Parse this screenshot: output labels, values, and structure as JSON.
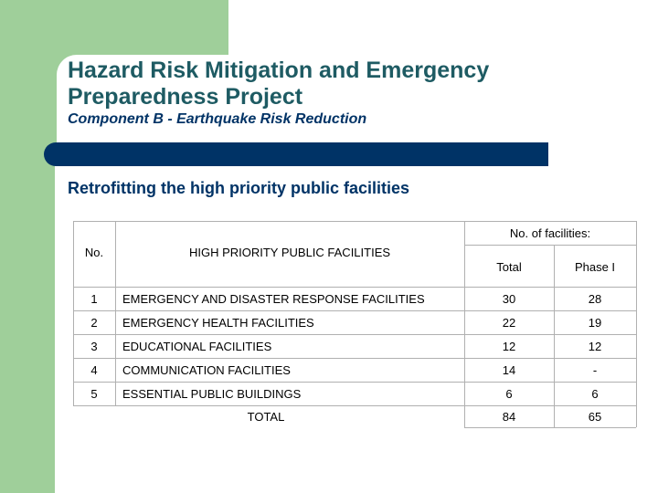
{
  "header": {
    "title_line1": "Hazard Risk Mitigation and Emergency",
    "title_line2": "Preparedness Project",
    "subtitle": "Component B - Earthquake Risk Reduction"
  },
  "section_title": "Retrofitting  the high priority public facilities",
  "table": {
    "group_header": "No. of facilities:",
    "col_no": "No.",
    "col_facilities": "HIGH PRIORITY PUBLIC FACILITIES",
    "col_total": "Total",
    "col_phase": "Phase I",
    "rows": [
      {
        "no": "1",
        "name": "EMERGENCY AND DISASTER RESPONSE FACILITIES",
        "total": "30",
        "phase": "28"
      },
      {
        "no": "2",
        "name": "EMERGENCY HEALTH FACILITIES",
        "total": "22",
        "phase": "19"
      },
      {
        "no": "3",
        "name": "EDUCATIONAL FACILITIES",
        "total": "12",
        "phase": "12"
      },
      {
        "no": "4",
        "name": "COMMUNICATION FACILITIES",
        "total": "14",
        "phase": "-"
      },
      {
        "no": "5",
        "name": "ESSENTIAL PUBLIC BUILDINGS",
        "total": "6",
        "phase": "6"
      }
    ],
    "total_label": "TOTAL",
    "total_total": "84",
    "total_phase": "65"
  }
}
